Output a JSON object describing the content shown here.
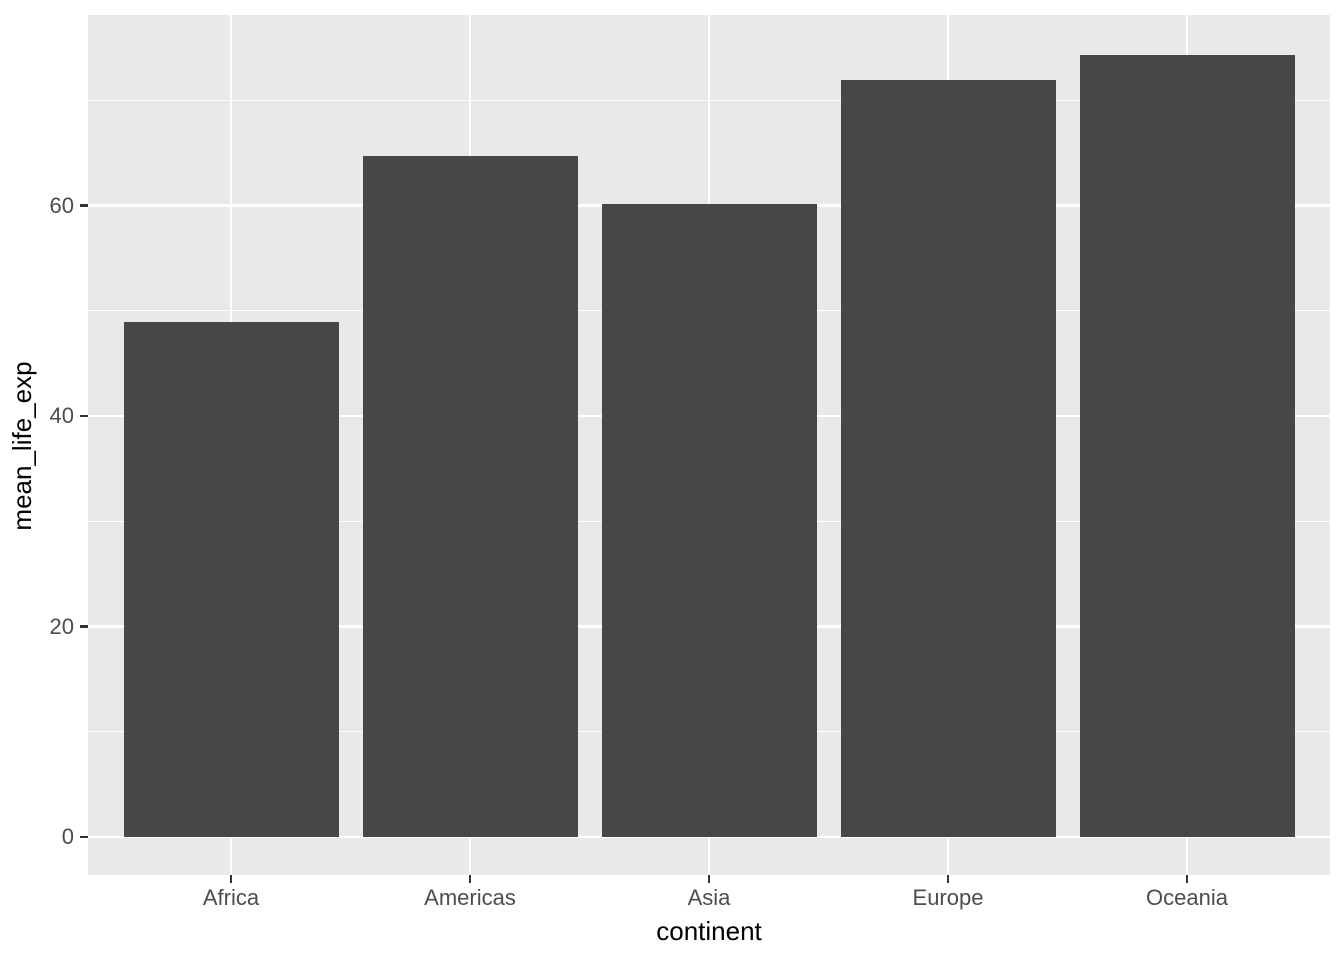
{
  "figure": {
    "background": "#FFFFFF",
    "panel_background": "#E9E9E9",
    "grid_color": "#FFFFFF",
    "bar_color": "#474747",
    "axis_text_color": "#4D4D4D",
    "axis_title_color": "#000000",
    "tick_mark_color": "#333333"
  },
  "chart_data": {
    "type": "bar",
    "title": "",
    "xlabel": "continent",
    "ylabel": "mean_life_exp",
    "categories": [
      "Africa",
      "Americas",
      "Asia",
      "Europe",
      "Oceania"
    ],
    "values": [
      48.9,
      64.7,
      60.1,
      71.9,
      74.3
    ],
    "y_major_ticks": [
      0,
      20,
      40,
      60
    ],
    "y_minor_ticks": [
      10,
      30,
      50,
      70
    ],
    "ylim": [
      -3.8,
      78.1
    ],
    "xlim_categories": 5,
    "grid": true,
    "legend": "none",
    "style": "ggplot2-theme-grey"
  }
}
